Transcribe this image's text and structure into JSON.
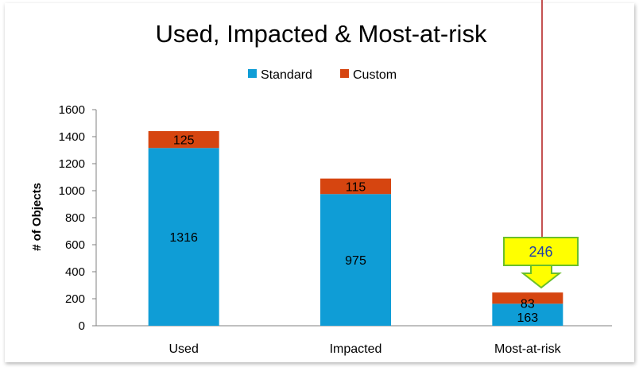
{
  "chart_data": {
    "type": "bar",
    "stacked": true,
    "title": "Used, Impacted & Most-at-risk",
    "xlabel": "",
    "ylabel": "# of Objects",
    "ylim": [
      0,
      1600
    ],
    "yticks": [
      0,
      200,
      400,
      600,
      800,
      1000,
      1200,
      1400,
      1600
    ],
    "grid": false,
    "legend_position": "top-center",
    "categories": [
      "Used",
      "Impacted",
      "Most-at-risk"
    ],
    "series": [
      {
        "name": "Standard",
        "color": "#0f9dd6",
        "values": [
          1316,
          975,
          163
        ]
      },
      {
        "name": "Custom",
        "color": "#d64510",
        "values": [
          125,
          115,
          83
        ]
      }
    ],
    "annotation": {
      "text": "246",
      "category": "Most-at-risk",
      "box_color": "#ffff00",
      "border_color": "#6abf2a"
    },
    "marker_line_color": "#b01818"
  }
}
